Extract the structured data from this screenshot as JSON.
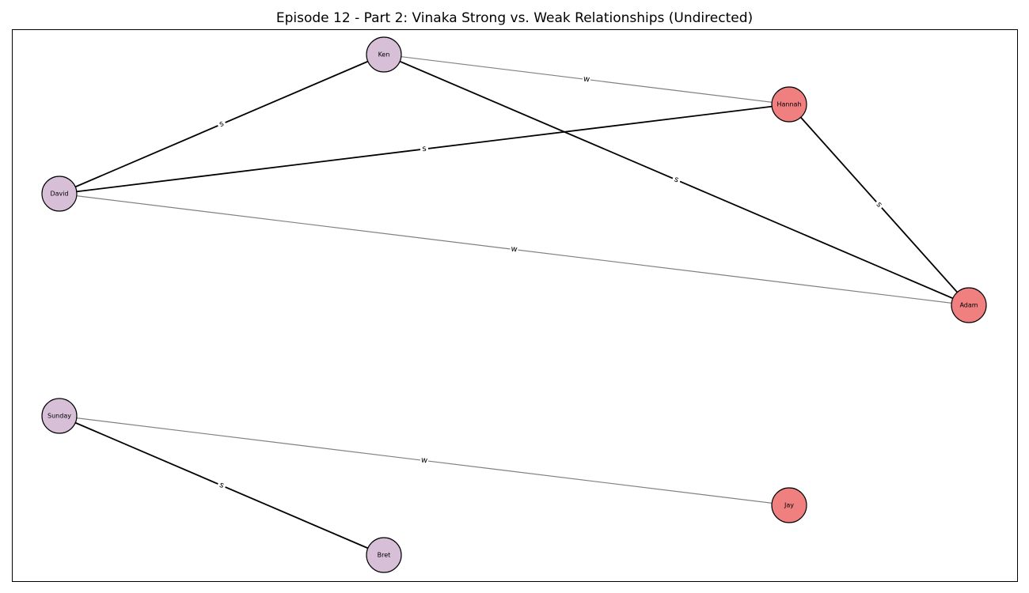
{
  "figure": {
    "title": "Episode 12 - Part 2: Vinaka Strong vs. Weak Relationships (Undirected)"
  },
  "colors": {
    "tribe_a": "#d8bfd8",
    "tribe_b": "#f08080",
    "strong_edge": "#000000",
    "weak_edge": "#808080",
    "node_border": "#000000"
  },
  "graph": {
    "nodes": [
      {
        "id": "Ken",
        "label": "Ken",
        "group": "tribe_a"
      },
      {
        "id": "Hannah",
        "label": "Hannah",
        "group": "tribe_b"
      },
      {
        "id": "David",
        "label": "David",
        "group": "tribe_a"
      },
      {
        "id": "Adam",
        "label": "Adam",
        "group": "tribe_b"
      },
      {
        "id": "Sunday",
        "label": "Sunday",
        "group": "tribe_a"
      },
      {
        "id": "Jay",
        "label": "Jay",
        "group": "tribe_b"
      },
      {
        "id": "Bret",
        "label": "Bret",
        "group": "tribe_a"
      }
    ],
    "edges": [
      {
        "source": "Ken",
        "target": "Hannah",
        "type": "weak",
        "label": "w"
      },
      {
        "source": "Ken",
        "target": "David",
        "type": "strong",
        "label": "s"
      },
      {
        "source": "Ken",
        "target": "Adam",
        "type": "strong",
        "label": "s"
      },
      {
        "source": "David",
        "target": "Hannah",
        "type": "strong",
        "label": "s"
      },
      {
        "source": "Hannah",
        "target": "Adam",
        "type": "strong",
        "label": "s"
      },
      {
        "source": "David",
        "target": "Adam",
        "type": "weak",
        "label": "w"
      },
      {
        "source": "Sunday",
        "target": "Jay",
        "type": "weak",
        "label": "w"
      },
      {
        "source": "Sunday",
        "target": "Bret",
        "type": "strong",
        "label": "s"
      }
    ]
  }
}
